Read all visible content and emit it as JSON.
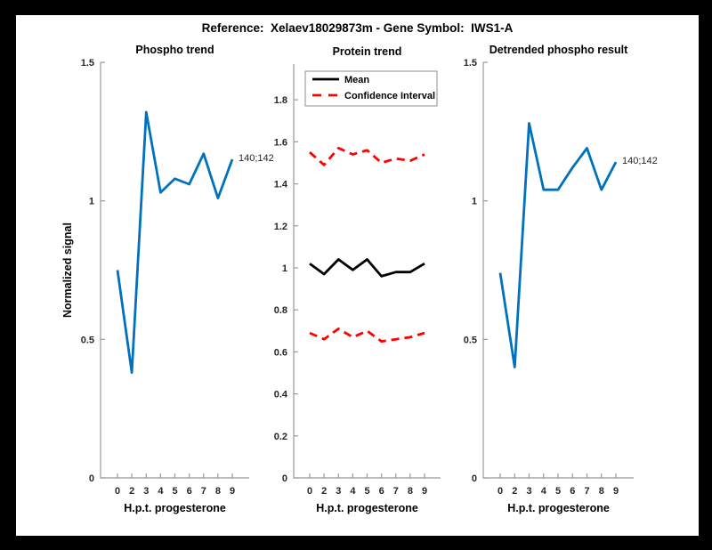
{
  "figure_title": "Reference:  Xelaev18029873m - Gene Symbol:  IWS1-A",
  "colors": {
    "line_blue": "#0072BD",
    "ci_red": "#FF0000",
    "mean_black": "#000000",
    "axis_gray": "#999999",
    "tick_text": "#262626",
    "figure_bg": "#FFFFFF",
    "frame_bg": "#000000"
  },
  "chart_data": [
    {
      "id": "phospho-trend",
      "type": "line",
      "title": "Phospho trend",
      "xlabel": "H.p.t. progesterone",
      "ylabel": "Normalized signal",
      "x_tick_labels": [
        "0",
        "2",
        "3",
        "4",
        "5",
        "6",
        "7",
        "8",
        "9"
      ],
      "ylim": [
        0,
        1.5
      ],
      "yticks": [
        0,
        0.5,
        1,
        1.5
      ],
      "ytick_labels": [
        "0",
        "0.5",
        "1",
        "1.5"
      ],
      "grid": false,
      "series": [
        {
          "name": "Phospho signal",
          "color": "#0072BD",
          "style": "solid",
          "values": [
            0.75,
            0.38,
            1.32,
            1.03,
            1.08,
            1.06,
            1.17,
            1.01,
            1.15
          ]
        }
      ],
      "annotation": {
        "text": "140;142",
        "at_index": 8
      }
    },
    {
      "id": "protein-trend",
      "type": "line",
      "title": "Protein trend",
      "xlabel": "H.p.t. progesterone",
      "ylabel": "",
      "x_tick_labels": [
        "0",
        "2",
        "3",
        "4",
        "5",
        "6",
        "7",
        "8",
        "9"
      ],
      "ylim": [
        0,
        1.97
      ],
      "yticks": [
        0,
        0.2,
        0.4,
        0.6,
        0.8,
        1,
        1.2,
        1.4,
        1.6,
        1.8
      ],
      "ytick_labels": [
        "0",
        "0.2",
        "0.4",
        "0.6",
        "0.8",
        "1",
        "1.2",
        "1.4",
        "1.6",
        "1.8"
      ],
      "grid": false,
      "legend": {
        "position": "top-left",
        "entries": [
          {
            "label": "Mean",
            "color": "#000000",
            "style": "solid"
          },
          {
            "label": "Confidence Interval",
            "color": "#FF0000",
            "style": "dashed"
          }
        ]
      },
      "series": [
        {
          "name": "Mean",
          "color": "#000000",
          "style": "solid",
          "values": [
            1.02,
            0.97,
            1.04,
            0.99,
            1.04,
            0.96,
            0.98,
            0.98,
            1.02
          ]
        },
        {
          "name": "Confidence Interval upper",
          "color": "#FF0000",
          "style": "dashed",
          "values": [
            1.55,
            1.49,
            1.57,
            1.54,
            1.56,
            1.5,
            1.52,
            1.51,
            1.54
          ]
        },
        {
          "name": "Confidence Interval lower",
          "color": "#FF0000",
          "style": "dashed",
          "values": [
            0.69,
            0.66,
            0.71,
            0.67,
            0.7,
            0.65,
            0.66,
            0.67,
            0.69
          ]
        }
      ]
    },
    {
      "id": "detrended-phospho-result",
      "type": "line",
      "title": "Detrended phospho result",
      "xlabel": "H.p.t. progesterone",
      "ylabel": "",
      "x_tick_labels": [
        "0",
        "2",
        "3",
        "4",
        "5",
        "6",
        "7",
        "8",
        "9"
      ],
      "ylim": [
        0,
        1.5
      ],
      "yticks": [
        0,
        0.5,
        1,
        1.5
      ],
      "ytick_labels": [
        "0",
        "0.5",
        "1",
        "1.5"
      ],
      "grid": false,
      "series": [
        {
          "name": "Detrended phospho signal",
          "color": "#0072BD",
          "style": "solid",
          "values": [
            0.74,
            0.4,
            1.28,
            1.04,
            1.04,
            1.12,
            1.19,
            1.04,
            1.14
          ]
        }
      ],
      "annotation": {
        "text": "140;142",
        "at_index": 8
      }
    }
  ]
}
